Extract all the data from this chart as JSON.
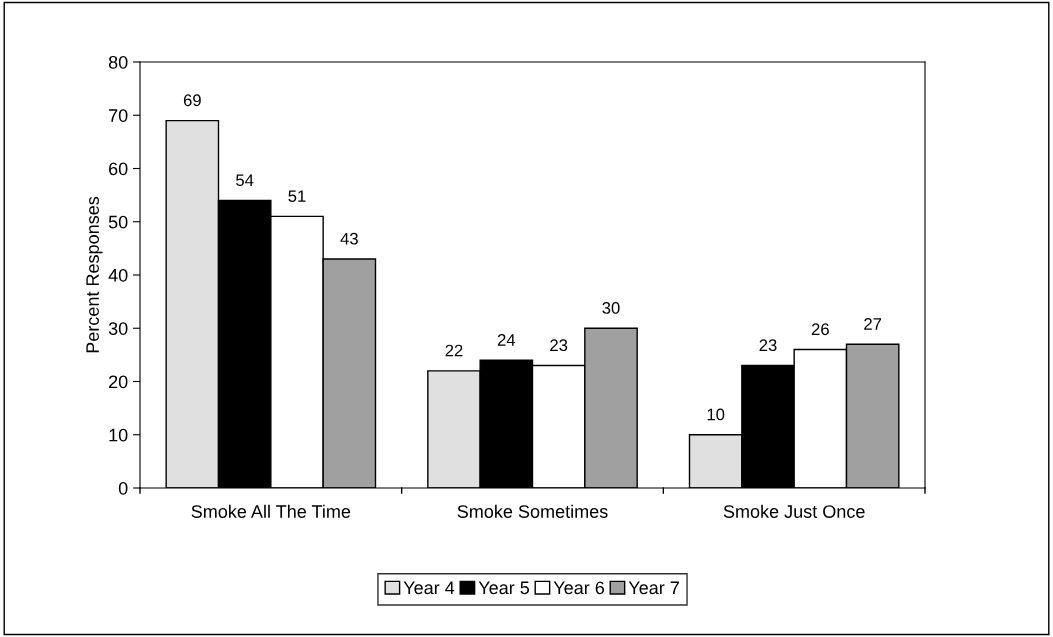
{
  "chart_data": {
    "type": "bar",
    "ylabel": "Percent Responses",
    "categories": [
      "Smoke All The Time",
      "Smoke Sometimes",
      "Smoke Just Once"
    ],
    "series": [
      {
        "name": "Year 4",
        "color": "#e0e0e0",
        "values": [
          69,
          22,
          10
        ]
      },
      {
        "name": "Year 5",
        "color": "#000000",
        "values": [
          54,
          24,
          23
        ]
      },
      {
        "name": "Year 6",
        "color": "#ffffff",
        "values": [
          51,
          23,
          26
        ]
      },
      {
        "name": "Year 7",
        "color": "#a0a0a0",
        "values": [
          43,
          30,
          27
        ]
      }
    ],
    "ylim": [
      0,
      80
    ],
    "yticks": [
      0,
      10,
      20,
      30,
      40,
      50,
      60,
      70,
      80
    ],
    "data_labels": true,
    "grid": false,
    "legend": "bottom"
  }
}
